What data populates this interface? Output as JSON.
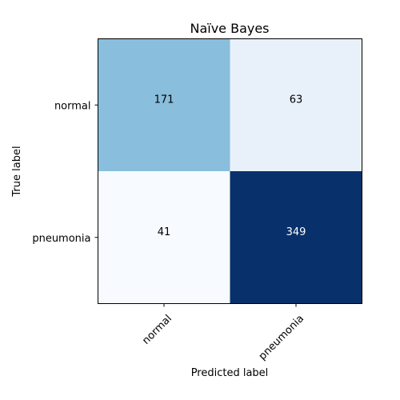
{
  "chart_data": {
    "type": "heatmap",
    "title": "Naïve Bayes",
    "xlabel": "Predicted label",
    "ylabel": "True label",
    "x_categories": [
      "normal",
      "pneumonia"
    ],
    "y_categories": [
      "normal",
      "pneumonia"
    ],
    "values": [
      [
        171,
        63
      ],
      [
        41,
        349
      ]
    ],
    "colormap": "Blues",
    "colors": {
      "cell_0_0": "#89bedc",
      "cell_0_1": "#e8f1fa",
      "cell_1_0": "#f7fbff",
      "cell_1_1": "#08306b",
      "text_light": "#ffffff",
      "text_dark": "#000000"
    },
    "grid": false,
    "legend": "none"
  }
}
